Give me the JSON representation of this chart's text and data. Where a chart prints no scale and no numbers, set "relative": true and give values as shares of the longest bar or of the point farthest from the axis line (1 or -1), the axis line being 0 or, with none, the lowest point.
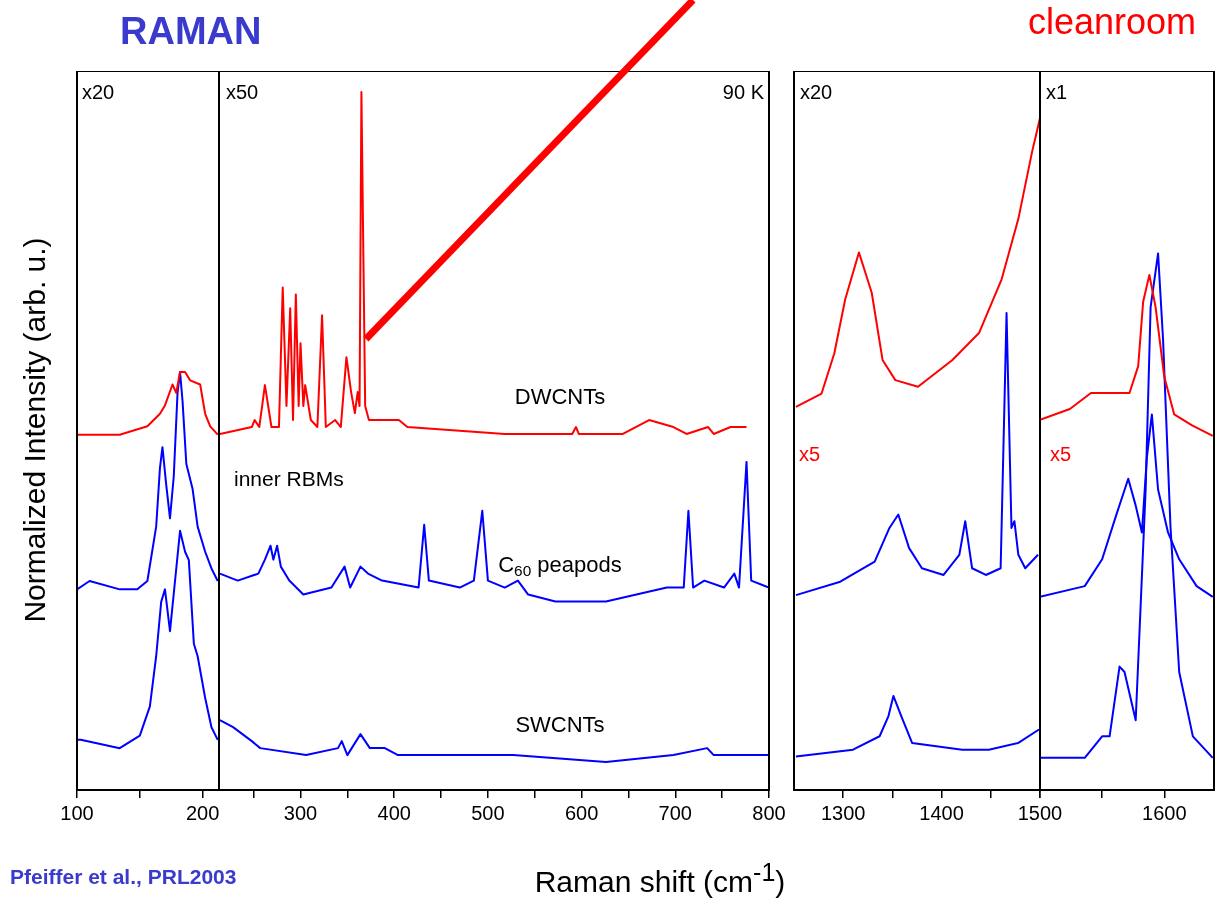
{
  "chart_data": [
    {
      "type": "line",
      "title": "RAMAN",
      "ylabel": "Normalized Intensity (arb. u.)",
      "relative": true,
      "xlim": [
        100,
        213
      ],
      "xticks": [
        100,
        {
          "value": 150,
          "label": null
        },
        200
      ],
      "annotations": [
        "x20",
        "Pfeiffer et al., PRL2003"
      ],
      "series": [
        {
          "color": "#ff0000",
          "x": [
            100,
            134,
            156,
            166,
            170,
            176,
            179,
            182,
            186,
            190,
            198,
            202,
            206,
            212
          ],
          "values": [
            0.85,
            0.85,
            0.87,
            0.9,
            0.92,
            0.97,
            0.95,
            1,
            1,
            0.98,
            0.97,
            0.9,
            0.87,
            0.85
          ]
        },
        {
          "color": "#0000ff",
          "x": [
            100,
            110,
            134,
            148,
            156,
            163,
            166,
            168,
            171,
            174,
            177,
            180,
            182,
            184,
            187,
            192,
            196,
            202,
            207,
            212
          ],
          "values": [
            0.48,
            0.5,
            0.48,
            0.48,
            0.5,
            0.63,
            0.77,
            0.82,
            0.73,
            0.65,
            0.75,
            0.95,
            1,
            0.93,
            0.78,
            0.72,
            0.63,
            0.57,
            0.53,
            0.5
          ]
        },
        {
          "color": "#0000ff",
          "x": [
            100,
            103,
            134,
            150,
            158,
            163,
            167,
            170,
            174,
            178,
            182,
            186,
            189,
            193,
            196,
            202,
            207,
            212
          ],
          "values": [
            0.12,
            0.12,
            0.1,
            0.13,
            0.2,
            0.32,
            0.45,
            0.48,
            0.38,
            0.5,
            0.62,
            0.57,
            0.55,
            0.35,
            0.32,
            0.22,
            0.15,
            0.12
          ]
        }
      ]
    },
    {
      "type": "line",
      "xlabel": "Raman shift (cm$^{-1}$)",
      "relative": true,
      "xlim": [
        213,
        800
      ],
      "xticks": [
        {
          "value": 250,
          "label": null
        },
        300,
        {
          "value": 350,
          "label": null
        },
        400,
        {
          "value": 450,
          "label": null
        },
        500,
        {
          "value": 550,
          "label": null
        },
        600,
        {
          "value": 650,
          "label": null
        },
        700,
        {
          "value": 750,
          "label": null
        },
        800
      ],
      "annotations": [
        "x50",
        "90 K",
        "inner RBMs"
      ],
      "series": [
        {
          "name": "DWCNTs",
          "color": "#ff0000",
          "x": [
            214,
            248,
            251,
            256,
            262,
            269,
            277,
            281,
            285,
            289,
            292,
            295,
            298,
            300,
            303,
            305,
            311,
            318,
            323,
            327,
            337,
            343,
            349,
            354,
            358,
            361,
            363,
            365,
            369,
            373,
            405,
            414,
            518,
            590,
            594,
            597,
            644,
            672,
            698,
            712,
            735,
            741,
            759,
            776
          ],
          "values": [
            0.51,
            0.52,
            0.53,
            0.52,
            0.58,
            0.52,
            0.52,
            0.72,
            0.55,
            0.69,
            0.53,
            0.71,
            0.55,
            0.64,
            0.55,
            0.58,
            0.53,
            0.52,
            0.68,
            0.52,
            0.53,
            0.52,
            0.62,
            0.57,
            0.54,
            0.57,
            0.55,
            1.0,
            0.55,
            0.53,
            0.53,
            0.52,
            0.51,
            0.51,
            0.52,
            0.51,
            0.51,
            0.53,
            0.52,
            0.51,
            0.52,
            0.51,
            0.52,
            0.52
          ]
        },
        {
          "name": "C$_{60}$ peapods",
          "color": "#0000ff",
          "x": [
            214,
            233,
            255,
            262,
            268,
            271,
            275,
            279,
            288,
            303,
            333,
            347,
            353,
            364,
            372,
            387,
            426,
            432,
            437,
            470,
            485,
            494,
            500,
            518,
            532,
            543,
            572,
            626,
            691,
            709,
            714,
            719,
            731,
            752,
            763,
            768,
            776,
            781,
            800
          ],
          "values": [
            0.31,
            0.3,
            0.31,
            0.33,
            0.35,
            0.33,
            0.35,
            0.32,
            0.3,
            0.28,
            0.29,
            0.32,
            0.29,
            0.32,
            0.31,
            0.3,
            0.29,
            0.38,
            0.3,
            0.29,
            0.3,
            0.4,
            0.3,
            0.29,
            0.3,
            0.28,
            0.27,
            0.27,
            0.29,
            0.29,
            0.4,
            0.29,
            0.3,
            0.29,
            0.31,
            0.29,
            0.47,
            0.3,
            0.29
          ]
        },
        {
          "name": "SWCNTs",
          "color": "#0000ff",
          "x": [
            214,
            228,
            248,
            257,
            306,
            340,
            344,
            350,
            364,
            374,
            390,
            404,
            527,
            626,
            698,
            734,
            741,
            800
          ],
          "values": [
            0.1,
            0.09,
            0.07,
            0.06,
            0.05,
            0.06,
            0.07,
            0.05,
            0.08,
            0.06,
            0.06,
            0.05,
            0.05,
            0.04,
            0.05,
            0.06,
            0.05,
            0.05
          ]
        }
      ]
    },
    {
      "type": "line",
      "relative": true,
      "xlim": [
        1250,
        1500
      ],
      "xticks": [
        1300,
        {
          "value": 1350,
          "label": null
        },
        1400,
        {
          "value": 1450,
          "label": null
        },
        {
          "value": 1500,
          "label": null
        }
      ],
      "annotations": [
        "x20",
        "x5"
      ],
      "series": [
        {
          "color": "#ff0000",
          "x": [
            1252,
            1278,
            1291,
            1302,
            1316,
            1329,
            1340,
            1353,
            1376,
            1411,
            1438,
            1461,
            1478,
            1492,
            1500
          ],
          "values": [
            0.57,
            0.59,
            0.65,
            0.73,
            0.8,
            0.74,
            0.64,
            0.61,
            0.6,
            0.64,
            0.68,
            0.76,
            0.85,
            0.95,
            1
          ]
        },
        {
          "color": "#0000ff",
          "x": [
            1252,
            1297,
            1332,
            1347,
            1356,
            1367,
            1380,
            1402,
            1418,
            1424,
            1431,
            1445,
            1460,
            1466,
            1471,
            1474,
            1478,
            1485,
            1498
          ],
          "values": [
            0.29,
            0.31,
            0.34,
            0.39,
            0.41,
            0.36,
            0.33,
            0.32,
            0.35,
            0.4,
            0.33,
            0.32,
            0.33,
            0.71,
            0.39,
            0.4,
            0.35,
            0.33,
            0.35
          ]
        },
        {
          "color": "#0000ff",
          "x": [
            1252,
            1310,
            1337,
            1346,
            1351,
            1359,
            1370,
            1421,
            1448,
            1478,
            1499
          ],
          "values": [
            0.05,
            0.06,
            0.08,
            0.11,
            0.14,
            0.11,
            0.07,
            0.06,
            0.06,
            0.07,
            0.09
          ]
        }
      ]
    },
    {
      "type": "line",
      "relative": true,
      "xlim": [
        1500,
        1640
      ],
      "xticks": [
        1500,
        {
          "value": 1550,
          "label": null
        },
        1600
      ],
      "annotations": [
        "x1",
        "x5",
        "cleanroom"
      ],
      "series": [
        {
          "color": "#ff0000",
          "x": [
            1500,
            1524,
            1541,
            1552,
            1572,
            1579,
            1583,
            1588,
            1593,
            1600,
            1608,
            1622,
            1639
          ],
          "values": [
            0.69,
            0.71,
            0.74,
            0.74,
            0.74,
            0.79,
            0.91,
            0.96,
            0.9,
            0.77,
            0.7,
            0.68,
            0.66
          ]
        },
        {
          "color": "#0000ff",
          "x": [
            1500,
            1536,
            1550,
            1561,
            1571,
            1577,
            1582,
            1586,
            1590,
            1595,
            1603,
            1612,
            1626,
            1639
          ],
          "values": [
            0.36,
            0.38,
            0.43,
            0.51,
            0.58,
            0.53,
            0.48,
            0.62,
            0.7,
            0.56,
            0.48,
            0.43,
            0.38,
            0.36
          ]
        },
        {
          "color": "#0000ff",
          "x": [
            1500,
            1536,
            1550,
            1556,
            1564,
            1568,
            1577,
            1585,
            1589,
            1595,
            1599,
            1605,
            1612,
            1623,
            1639
          ],
          "values": [
            0.06,
            0.06,
            0.1,
            0.1,
            0.23,
            0.22,
            0.13,
            0.56,
            0.9,
            1,
            0.84,
            0.49,
            0.22,
            0.1,
            0.06
          ]
        }
      ]
    }
  ]
}
